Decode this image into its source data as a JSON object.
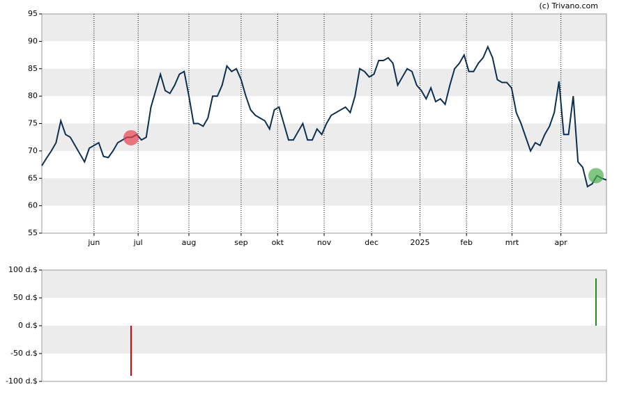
{
  "chart_data": [
    {
      "type": "line",
      "credit": "(c) Trivano.com",
      "values": [
        67.3,
        68.7,
        70,
        71.5,
        75.5,
        73,
        72.5,
        71,
        69.5,
        68,
        70.5,
        71,
        71.5,
        69,
        68.8,
        70,
        71.5,
        72,
        72.5,
        72.5,
        73,
        72,
        72.5,
        78,
        81,
        84,
        81,
        80.5,
        82,
        84,
        84.5,
        80,
        75,
        75,
        74.5,
        76,
        80,
        80,
        82,
        85.5,
        84.5,
        85,
        83,
        80,
        77.5,
        76.5,
        76,
        75.5,
        74,
        77.5,
        78,
        75,
        72,
        72,
        73.5,
        75,
        72,
        72,
        74,
        73,
        75,
        76.5,
        77,
        77.5,
        78,
        77,
        80,
        85,
        84.5,
        83.5,
        84,
        86.5,
        86.5,
        87,
        86,
        82,
        83.5,
        85,
        84.5,
        82,
        81,
        79.5,
        81.5,
        79,
        79.5,
        78.5,
        82,
        85,
        86,
        87.5,
        84.5,
        84.5,
        86,
        87,
        89,
        87,
        83,
        82.5,
        82.5,
        81.5,
        77,
        75,
        72.5,
        70,
        71.5,
        71,
        73,
        74.5,
        77,
        82.7,
        73,
        73,
        80,
        68,
        67,
        63.5,
        64,
        65.5,
        65,
        64.7
      ],
      "color": "#0d2f4f",
      "xlim": [
        0,
        119
      ],
      "xticks": [
        {
          "value": 11.0,
          "label": "jun"
        },
        {
          "value": 20.3,
          "label": "jul"
        },
        {
          "value": 31.0,
          "label": "aug"
        },
        {
          "value": 42.0,
          "label": "sep"
        },
        {
          "value": 49.7,
          "label": "okt"
        },
        {
          "value": 59.5,
          "label": "nov"
        },
        {
          "value": 69.5,
          "label": "dec"
        },
        {
          "value": 79.7,
          "label": "2025"
        },
        {
          "value": 89.5,
          "label": "feb"
        },
        {
          "value": 99.1,
          "label": "mrt"
        },
        {
          "value": 109.4,
          "label": "apr"
        }
      ],
      "ylim": [
        55,
        95
      ],
      "yticks": [
        55,
        60,
        65,
        70,
        75,
        80,
        85,
        90,
        95
      ],
      "markers": {
        "x": [
          18.8,
          116.8
        ],
        "values": [
          72.4,
          65.5
        ],
        "colors": [
          "#e8424f",
          "#4caf50"
        ]
      }
    },
    {
      "type": "bar",
      "x": [
        18.8,
        116.8
      ],
      "values": [
        -90,
        85
      ],
      "colors": [
        "#dd0000",
        "#228b22"
      ],
      "xlim": [
        0,
        119
      ],
      "ylim": [
        -100,
        100
      ],
      "yticks": [
        {
          "value": -100,
          "label": "-100 d.$"
        },
        {
          "value": -50,
          "label": "-50 d.$"
        },
        {
          "value": 0,
          "label": "0 d.$"
        },
        {
          "value": 50,
          "label": "50 d.$"
        },
        {
          "value": 100,
          "label": "100 d.$"
        }
      ]
    }
  ]
}
